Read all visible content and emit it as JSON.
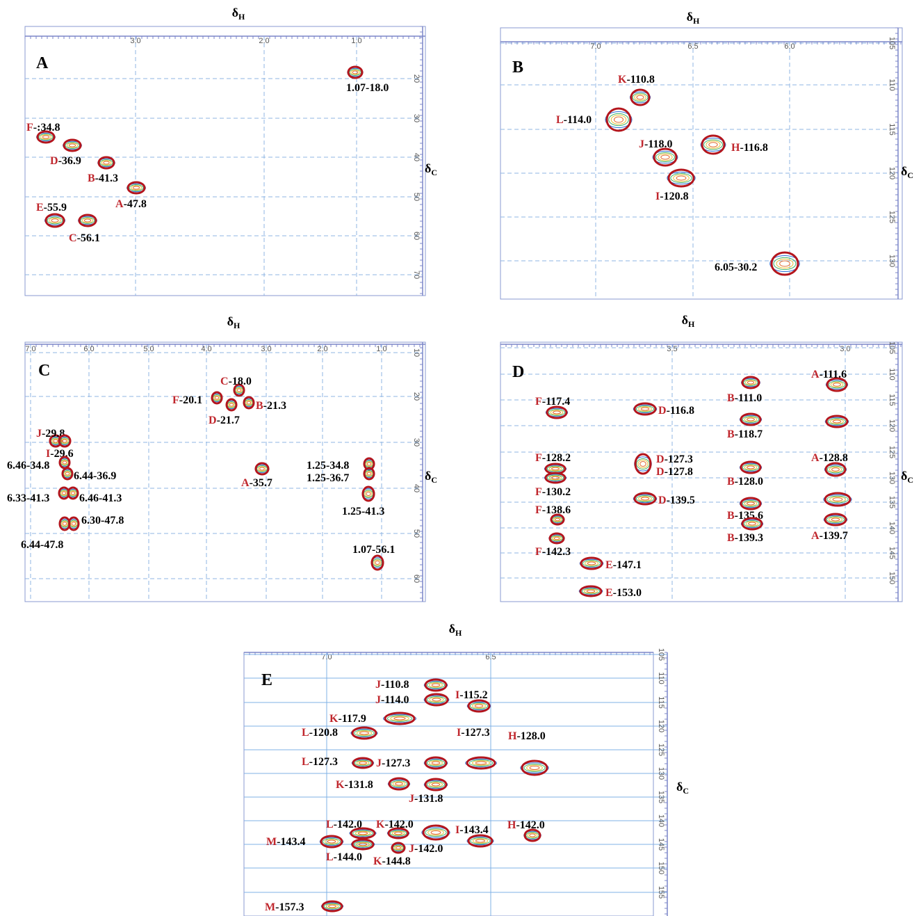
{
  "panels": [
    {
      "letter": "A",
      "x_title": {
        "main": "δ",
        "sub": "H"
      },
      "y_title": {
        "main": "δ",
        "sub": "C"
      },
      "xticks": [
        "3.0",
        "2.0",
        "1.0"
      ],
      "yticks": [
        "20",
        "30",
        "40",
        "50",
        "60",
        "70"
      ],
      "annotations": [
        {
          "text": "1.07-18.0"
        },
        {
          "letter": "F",
          "text": "-:34.8"
        },
        {
          "letter": "D",
          "text": "-36.9"
        },
        {
          "letter": "B",
          "text": "-41.3"
        },
        {
          "letter": "A",
          "text": "-47.8"
        },
        {
          "letter": "E",
          "text": "-55.9"
        },
        {
          "letter": "C",
          "text": "-56.1"
        }
      ]
    },
    {
      "letter": "B",
      "x_title": {
        "main": "δ",
        "sub": "H"
      },
      "y_title": {
        "main": "δ",
        "sub": "C"
      },
      "xticks": [
        "7.0",
        "6.5",
        "6.0"
      ],
      "yticks": [
        "105",
        "110",
        "115",
        "120",
        "125",
        "130"
      ],
      "annotations": [
        {
          "letter": "K",
          "text": "-110.8"
        },
        {
          "letter": "L",
          "text": "-114.0"
        },
        {
          "letter": "J",
          "text": "-118.0"
        },
        {
          "letter": "H",
          "text": "-116.8"
        },
        {
          "letter": "I",
          "text": "-120.8"
        },
        {
          "text": "6.05-30.2"
        }
      ]
    },
    {
      "letter": "C",
      "x_title": {
        "main": "δ",
        "sub": "H"
      },
      "y_title": {
        "main": "δ",
        "sub": "C"
      },
      "xticks": [
        "7.0",
        "6.0",
        "5.0",
        "4.0",
        "3.0",
        "2.0",
        "1.0"
      ],
      "yticks": [
        "10",
        "20",
        "30",
        "40",
        "50",
        "60"
      ],
      "annotations": [
        {
          "letter": "C",
          "text": "-18.0"
        },
        {
          "letter": "F",
          "text": "-20.1"
        },
        {
          "letter": "B",
          "text": "-21.3"
        },
        {
          "letter": "D",
          "text": "-21.7"
        },
        {
          "letter": "J",
          "text": "-29.8"
        },
        {
          "letter": "I",
          "text": "-29.6"
        },
        {
          "text": "6.46-34.8"
        },
        {
          "text": "6.44-36.9"
        },
        {
          "letter": "A",
          "text": "-35.7"
        },
        {
          "text": "1.25-34.8"
        },
        {
          "text": "1.25-36.7"
        },
        {
          "text": "6.33-41.3"
        },
        {
          "text": "6.46-41.3"
        },
        {
          "text": "1.25-41.3"
        },
        {
          "text": "6.30-47.8"
        },
        {
          "text": "6.44-47.8"
        },
        {
          "text": "1.07-56.1"
        }
      ]
    },
    {
      "letter": "D",
      "x_title": {
        "main": "δ",
        "sub": "H"
      },
      "y_title": {
        "main": "δ",
        "sub": "C"
      },
      "xticks": [
        "3.5",
        "3.0"
      ],
      "yticks": [
        "105",
        "110",
        "115",
        "120",
        "125",
        "130",
        "135",
        "140",
        "145",
        "150"
      ],
      "annotations": [
        {
          "letter": "A",
          "text": "-111.6"
        },
        {
          "letter": "F",
          "text": "-117.4"
        },
        {
          "letter": "B",
          "text": "-111.0"
        },
        {
          "letter": "D",
          "text": "-116.8"
        },
        {
          "letter": "B",
          "text": "-118.7"
        },
        {
          "letter": "F",
          "text": "-128.2"
        },
        {
          "letter": "D",
          "text": "-127.3"
        },
        {
          "letter": "D",
          "text": "-127.8"
        },
        {
          "letter": "A",
          "text": "-128.8"
        },
        {
          "letter": "B",
          "text": "-128.0"
        },
        {
          "letter": "F",
          "text": "-130.2"
        },
        {
          "letter": "D",
          "text": "-139.5"
        },
        {
          "letter": "F",
          "text": "-138.6"
        },
        {
          "letter": "B",
          "text": "-135.6"
        },
        {
          "letter": "B",
          "text": "-139.3"
        },
        {
          "letter": "A",
          "text": "-139.7"
        },
        {
          "letter": "F",
          "text": "-142.3"
        },
        {
          "letter": "E",
          "text": "-147.1"
        },
        {
          "letter": "E",
          "text": "-153.0"
        }
      ]
    },
    {
      "letter": "E",
      "x_title": {
        "main": "δ",
        "sub": "H"
      },
      "y_title": {
        "main": "δ",
        "sub": "C"
      },
      "xticks": [
        "7.0",
        "6.5"
      ],
      "yticks": [
        "105",
        "110",
        "115",
        "120",
        "125",
        "130",
        "135",
        "140",
        "145",
        "150",
        "155"
      ],
      "annotations": [
        {
          "letter": "J",
          "text": "-110.8"
        },
        {
          "letter": "J",
          "text": "-114.0"
        },
        {
          "letter": "I",
          "text": "-115.2"
        },
        {
          "letter": "K",
          "text": "-117.9"
        },
        {
          "letter": "L",
          "text": "-120.8"
        },
        {
          "letter": "I",
          "text": "-127.3"
        },
        {
          "letter": "H",
          "text": "-128.0"
        },
        {
          "letter": "L",
          "text": "-127.3"
        },
        {
          "letter": "J",
          "text": "-127.3"
        },
        {
          "letter": "K",
          "text": "-131.8"
        },
        {
          "letter": "J",
          "text": "-131.8"
        },
        {
          "letter": "L",
          "text": "-142.0"
        },
        {
          "letter": "K",
          "text": "-142.0"
        },
        {
          "letter": "I",
          "text": "-143.4"
        },
        {
          "letter": "H",
          "text": "-142.0"
        },
        {
          "letter": "M",
          "text": "-143.4"
        },
        {
          "letter": "L",
          "text": "-144.0"
        },
        {
          "letter": "J",
          "text": "-142.0"
        },
        {
          "letter": "K",
          "text": "-144.8"
        },
        {
          "letter": "M",
          "text": "-157.3"
        }
      ]
    }
  ]
}
